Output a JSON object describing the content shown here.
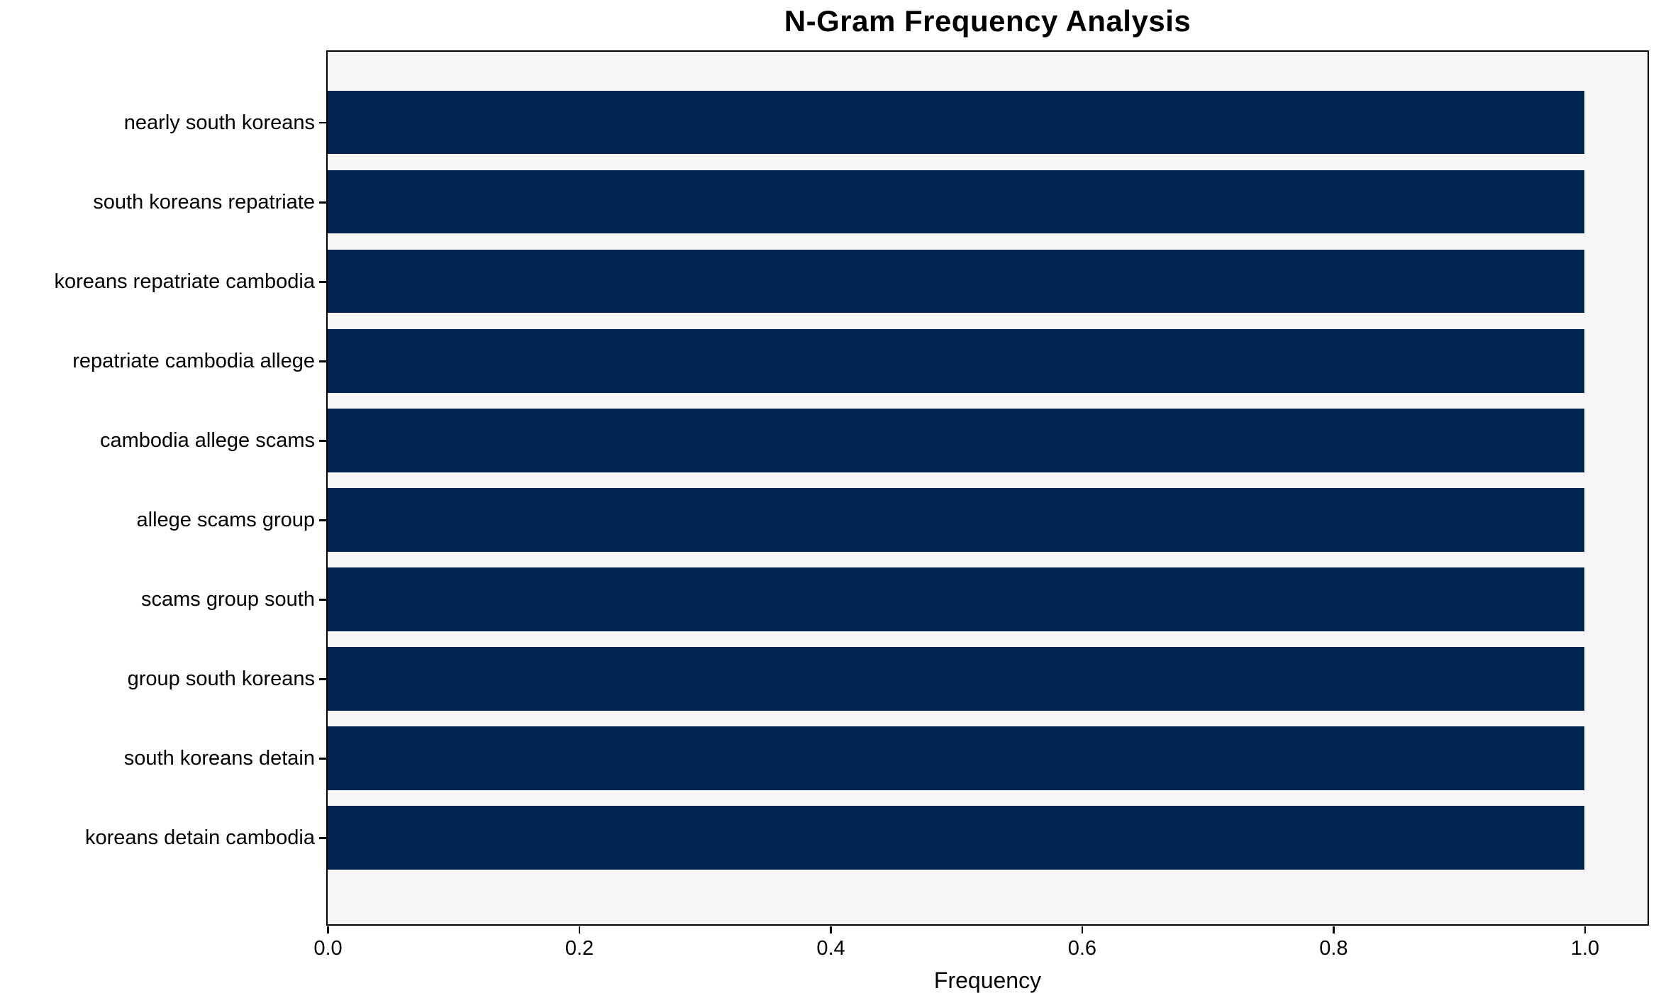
{
  "chart_data": {
    "type": "bar",
    "orientation": "horizontal",
    "title": "N-Gram Frequency Analysis",
    "xlabel": "Frequency",
    "ylabel": "",
    "categories": [
      "nearly south koreans",
      "south koreans repatriate",
      "koreans repatriate cambodia",
      "repatriate cambodia allege",
      "cambodia allege scams",
      "allege scams group",
      "scams group south",
      "group south koreans",
      "south koreans detain",
      "koreans detain cambodia"
    ],
    "values": [
      1.0,
      1.0,
      1.0,
      1.0,
      1.0,
      1.0,
      1.0,
      1.0,
      1.0,
      1.0
    ],
    "x_ticks": [
      {
        "value": 0.0,
        "label": "0.0"
      },
      {
        "value": 0.2,
        "label": "0.2"
      },
      {
        "value": 0.4,
        "label": "0.4"
      },
      {
        "value": 0.6,
        "label": "0.6"
      },
      {
        "value": 0.8,
        "label": "0.8"
      },
      {
        "value": 1.0,
        "label": "1.0"
      }
    ],
    "xlim": [
      0.0,
      1.05
    ],
    "grid": false,
    "legend": "none",
    "bar_color": "#032551",
    "plot_background": "#f6f6f6",
    "spine_color": "#000000",
    "text_color": "#000000"
  }
}
